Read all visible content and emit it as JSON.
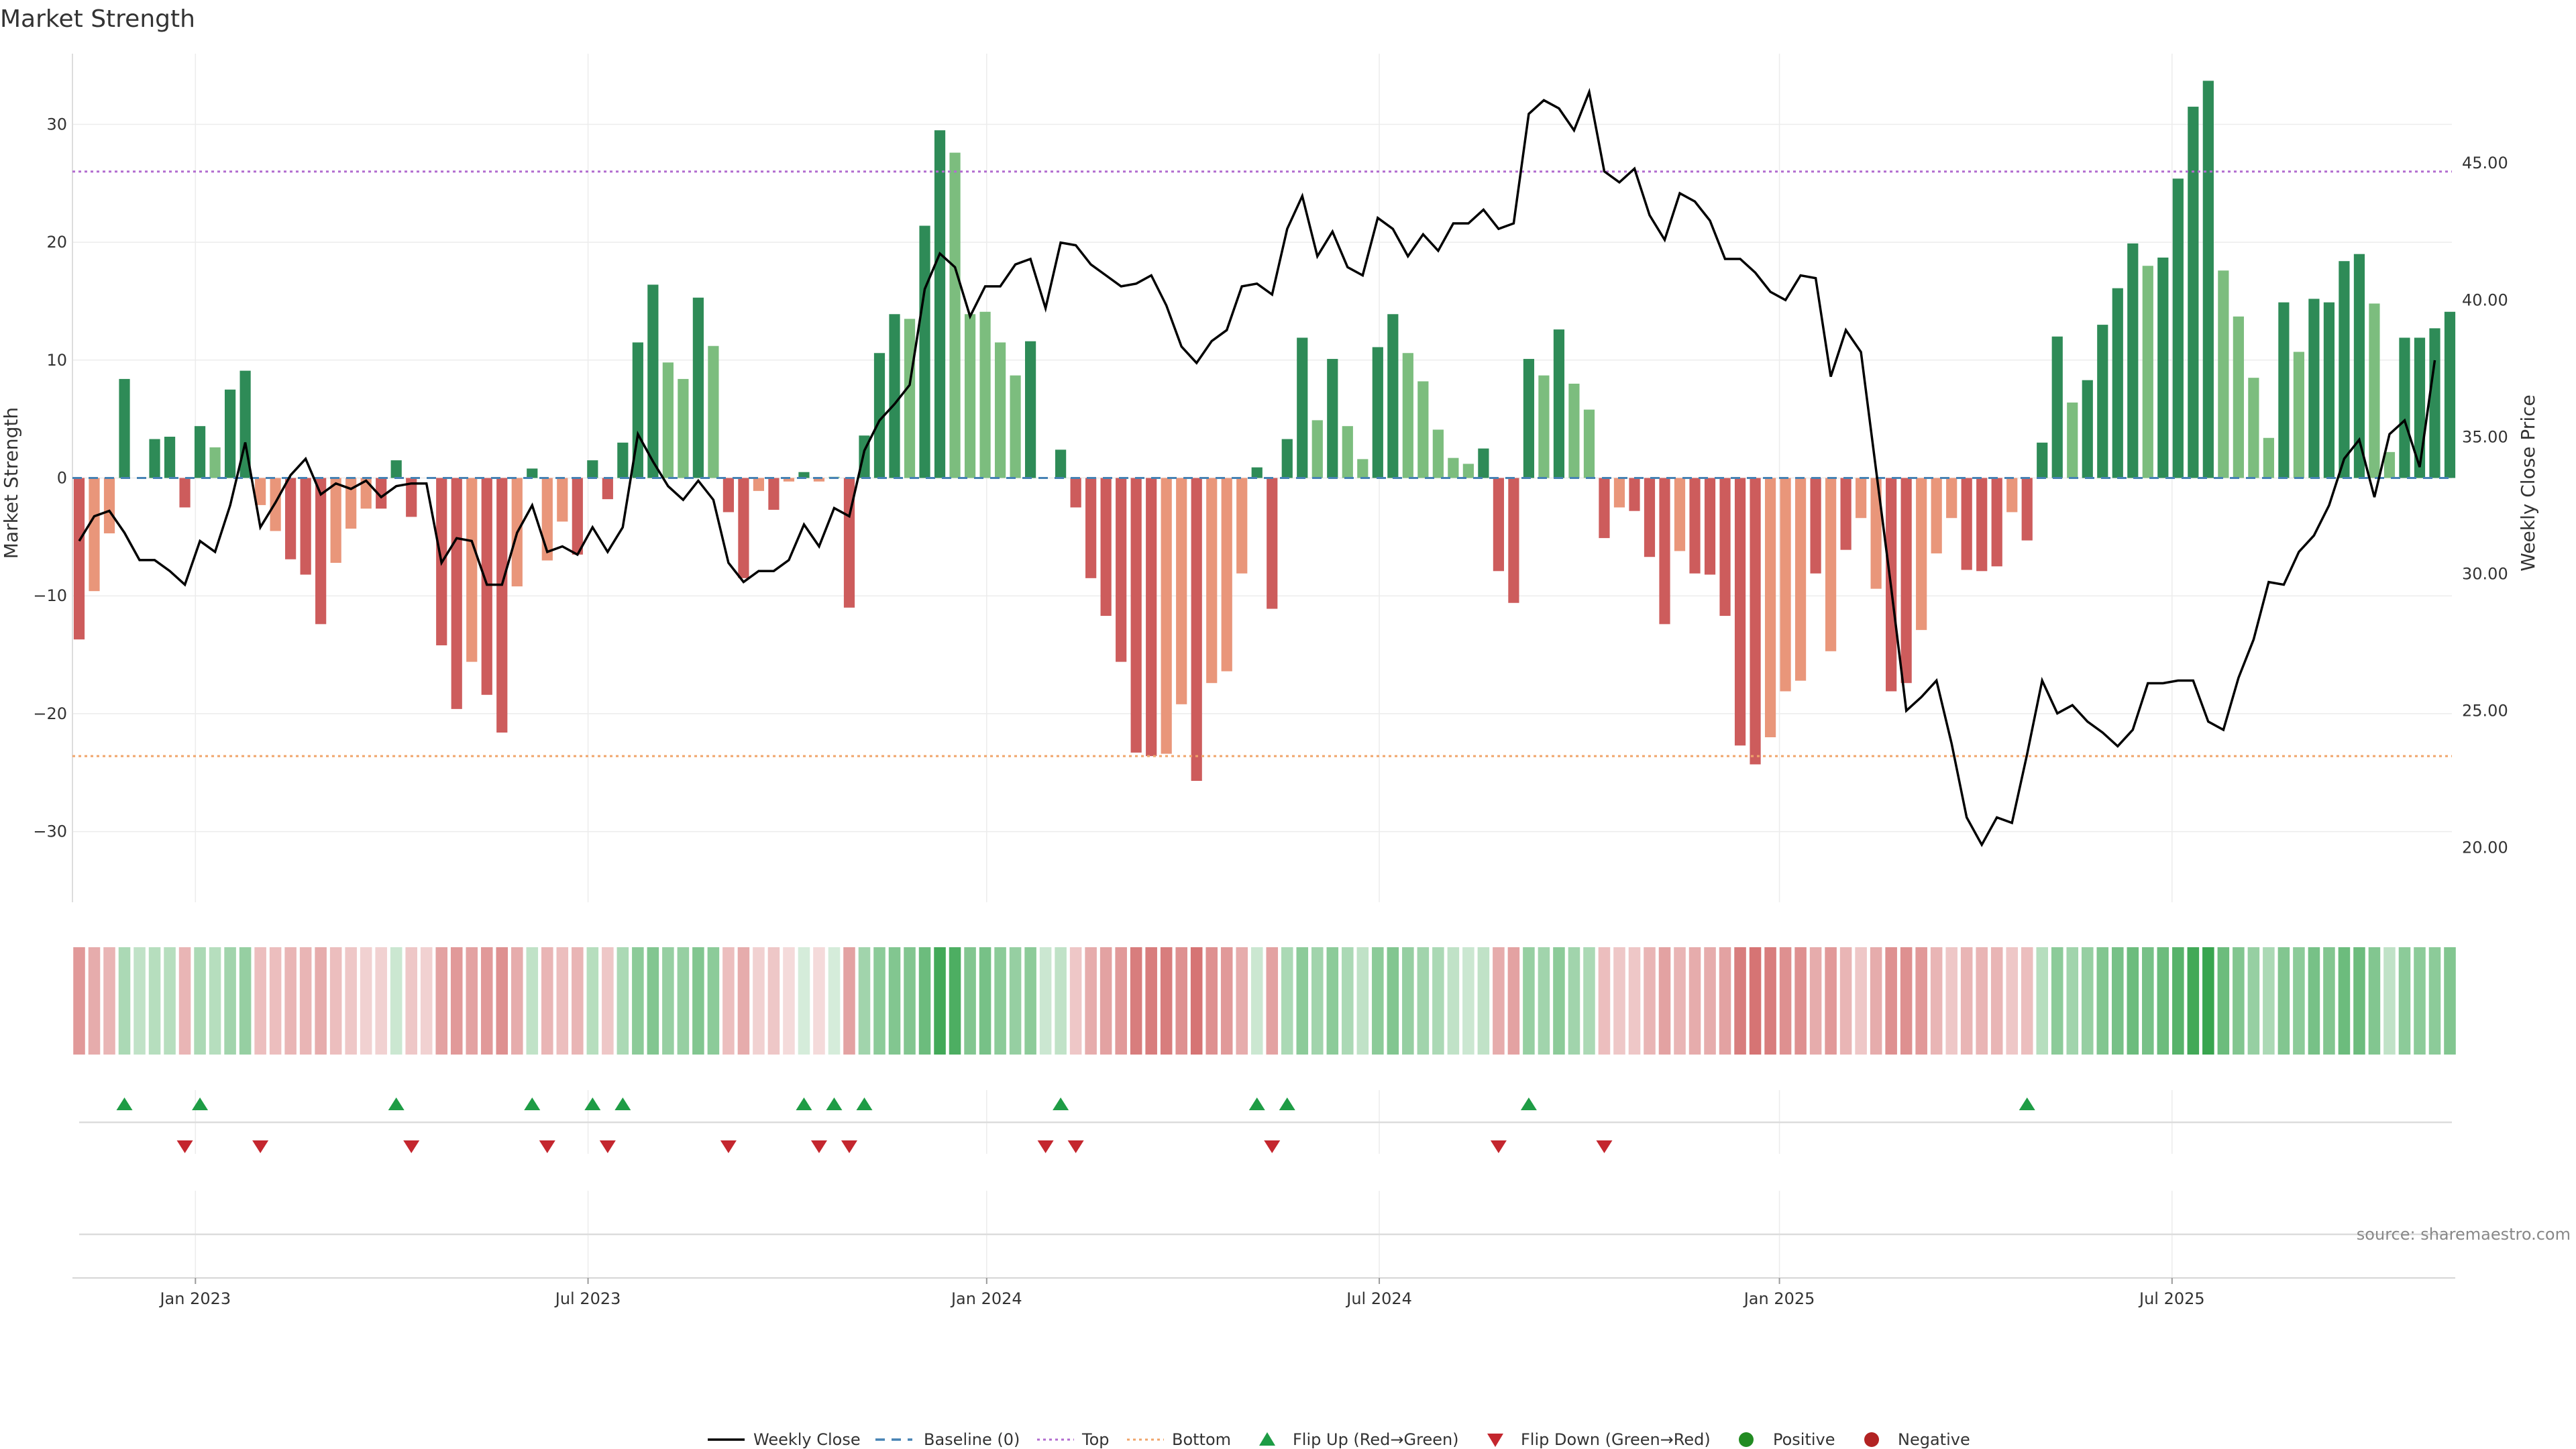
{
  "chart_data": {
    "type": "bar",
    "title": "Market Strength",
    "ylabel_left": "Market Strength",
    "ylabel_right": "Weekly Close Price",
    "ylim_left": [
      -36,
      36
    ],
    "ylim_right": [
      18,
      49
    ],
    "yticks_left": [
      30,
      20,
      10,
      0,
      -10,
      -20,
      -30
    ],
    "yticks_right": [
      "45.00",
      "40.00",
      "35.00",
      "30.00",
      "25.00",
      "20.00"
    ],
    "x_tick_labels": [
      "Jan 2023",
      "Jul 2023",
      "Jan 2024",
      "Jul 2024",
      "Jan 2025",
      "Jul 2025"
    ],
    "x_tick_weeks": [
      7.7,
      33.7,
      60.1,
      86.1,
      112.6,
      138.6
    ],
    "top_level": 26,
    "bottom_level": -23.6,
    "strength": [
      -13.7,
      -9.6,
      -4.7,
      8.4,
      0,
      3.3,
      3.5,
      -2.5,
      4.4,
      2.6,
      7.5,
      9.1,
      -2.3,
      -4.5,
      -6.9,
      -8.2,
      -12.4,
      -7.2,
      -4.3,
      -2.6,
      -2.6,
      1.5,
      -3.3,
      0,
      -14.2,
      -19.6,
      -15.6,
      -18.4,
      -21.6,
      -9.2,
      0.8,
      -7.0,
      -3.7,
      -6.5,
      1.5,
      -1.8,
      3.0,
      11.5,
      16.4,
      9.8,
      8.4,
      15.3,
      11.2,
      -2.9,
      -8.5,
      -1.1,
      -2.7,
      -0.3,
      0.5,
      -0.3,
      0.1,
      -11.0,
      3.6,
      10.6,
      13.9,
      13.5,
      21.4,
      29.5,
      27.6,
      13.9,
      14.1,
      11.5,
      8.7,
      11.6,
      0,
      2.4,
      -2.5,
      -8.5,
      -11.7,
      -15.6,
      -23.3,
      -23.6,
      -23.4,
      -19.2,
      -25.7,
      -17.4,
      -16.4,
      -8.1,
      0.9,
      -11.1,
      3.3,
      11.9,
      4.9,
      10.1,
      4.4,
      1.6,
      11.1,
      13.9,
      10.6,
      8.2,
      4.1,
      1.7,
      1.2,
      2.5,
      -7.9,
      -10.6,
      10.1,
      8.7,
      12.6,
      8.0,
      5.8,
      -5.1,
      -2.5,
      -2.8,
      -6.7,
      -12.4,
      -6.2,
      -8.1,
      -8.2,
      -11.7,
      -22.7,
      -24.3,
      -22.0,
      -18.1,
      -17.2,
      -8.1,
      -14.7,
      -6.1,
      -3.4,
      -9.4,
      -18.1,
      -17.4,
      -12.9,
      -6.4,
      -3.4,
      -7.8,
      -7.9,
      -7.5,
      -2.9,
      -5.3,
      3.0,
      12.0,
      6.4,
      8.3,
      13.0,
      16.1,
      19.9,
      18.0,
      18.7,
      25.4,
      31.5,
      33.7,
      17.6,
      13.7,
      8.5,
      3.4,
      14.9,
      10.7,
      15.2,
      14.9,
      18.4,
      19.0,
      14.8,
      2.2,
      11.9,
      11.9,
      12.7,
      14.1
    ],
    "bar_shades": [
      2,
      1,
      1,
      3,
      0,
      3,
      3,
      2,
      3,
      1,
      3,
      3,
      1,
      1,
      2,
      2,
      2,
      1,
      1,
      1,
      2,
      3,
      2,
      0,
      2,
      2,
      1,
      2,
      2,
      1,
      3,
      1,
      1,
      2,
      3,
      2,
      3,
      3,
      3,
      1,
      1,
      3,
      1,
      2,
      2,
      1,
      2,
      1,
      3,
      1,
      1,
      2,
      3,
      3,
      3,
      1,
      3,
      3,
      1,
      1,
      1,
      1,
      1,
      3,
      0,
      3,
      2,
      2,
      2,
      2,
      2,
      2,
      1,
      1,
      2,
      1,
      1,
      1,
      3,
      2,
      3,
      3,
      1,
      3,
      1,
      1,
      3,
      3,
      1,
      1,
      1,
      1,
      1,
      3,
      2,
      2,
      3,
      1,
      3,
      1,
      1,
      2,
      1,
      2,
      2,
      2,
      1,
      2,
      2,
      2,
      2,
      2,
      1,
      1,
      1,
      2,
      1,
      2,
      1,
      1,
      2,
      2,
      1,
      1,
      1,
      2,
      2,
      2,
      1,
      2,
      3,
      3,
      1,
      3,
      3,
      3,
      3,
      1,
      3,
      3,
      3,
      3,
      1,
      1,
      1,
      1,
      3,
      1,
      3,
      3,
      3,
      3,
      1,
      1,
      3,
      3,
      3,
      3
    ],
    "heat_strip": [
      -0.45,
      -0.35,
      -0.3,
      0.3,
      0.2,
      0.25,
      0.25,
      -0.3,
      0.3,
      0.25,
      0.35,
      0.4,
      -0.25,
      -0.25,
      -0.3,
      -0.3,
      -0.35,
      -0.25,
      -0.2,
      -0.15,
      -0.15,
      0.15,
      -0.2,
      -0.15,
      -0.4,
      -0.45,
      -0.4,
      -0.45,
      -0.5,
      -0.35,
      0.2,
      -0.3,
      -0.25,
      -0.3,
      0.25,
      -0.2,
      0.3,
      0.45,
      0.5,
      0.4,
      0.4,
      0.5,
      0.45,
      -0.25,
      -0.35,
      -0.15,
      -0.2,
      -0.1,
      0.1,
      -0.1,
      0.1,
      -0.4,
      0.35,
      0.45,
      0.5,
      0.5,
      0.6,
      0.8,
      0.75,
      0.5,
      0.55,
      0.45,
      0.4,
      0.45,
      0.15,
      0.2,
      -0.2,
      -0.35,
      -0.4,
      -0.45,
      -0.6,
      -0.6,
      -0.6,
      -0.5,
      -0.65,
      -0.5,
      -0.45,
      -0.35,
      0.15,
      -0.4,
      0.3,
      0.45,
      0.35,
      0.45,
      0.3,
      0.2,
      0.45,
      0.5,
      0.4,
      0.35,
      0.3,
      0.2,
      0.15,
      0.2,
      -0.35,
      -0.4,
      0.4,
      0.35,
      0.45,
      0.35,
      0.3,
      -0.25,
      -0.2,
      -0.2,
      -0.3,
      -0.4,
      -0.3,
      -0.35,
      -0.35,
      -0.4,
      -0.6,
      -0.65,
      -0.6,
      -0.5,
      -0.5,
      -0.35,
      -0.45,
      -0.3,
      -0.2,
      -0.35,
      -0.5,
      -0.5,
      -0.45,
      -0.3,
      -0.2,
      -0.3,
      -0.3,
      -0.3,
      -0.2,
      -0.25,
      0.25,
      0.45,
      0.35,
      0.4,
      0.5,
      0.55,
      0.6,
      0.55,
      0.6,
      0.7,
      0.8,
      0.85,
      0.6,
      0.5,
      0.4,
      0.3,
      0.5,
      0.45,
      0.55,
      0.5,
      0.6,
      0.6,
      0.5,
      0.2,
      0.45,
      0.45,
      0.45,
      0.5
    ],
    "close": [
      31.2,
      32.1,
      32.3,
      31.5,
      30.5,
      30.5,
      30.1,
      29.6,
      31.2,
      30.8,
      32.5,
      34.8,
      31.7,
      32.6,
      33.6,
      34.2,
      32.9,
      33.3,
      33.1,
      33.4,
      32.8,
      33.2,
      33.3,
      33.3,
      30.4,
      31.3,
      31.2,
      29.6,
      29.6,
      31.5,
      32.5,
      30.8,
      31.0,
      30.7,
      31.7,
      30.8,
      31.7,
      35.1,
      34.1,
      33.2,
      32.7,
      33.4,
      32.7,
      30.4,
      29.7,
      30.1,
      30.1,
      30.5,
      31.8,
      31.0,
      32.4,
      32.1,
      34.5,
      35.6,
      36.2,
      36.9,
      40.4,
      41.7,
      41.2,
      39.4,
      40.5,
      40.5,
      41.3,
      41.5,
      39.7,
      42.1,
      42.0,
      41.3,
      40.9,
      40.5,
      40.6,
      40.9,
      39.8,
      38.3,
      37.7,
      38.5,
      38.9,
      40.5,
      40.6,
      40.2,
      42.6,
      43.8,
      41.6,
      42.5,
      41.2,
      40.9,
      43.0,
      42.6,
      41.6,
      42.4,
      41.8,
      42.8,
      42.8,
      43.3,
      42.6,
      42.8,
      46.8,
      47.3,
      47.0,
      46.2,
      47.6,
      44.7,
      44.3,
      44.8,
      43.1,
      42.2,
      43.9,
      43.6,
      42.9,
      41.5,
      41.5,
      41.0,
      40.3,
      40.0,
      40.9,
      40.8,
      37.2,
      38.9,
      38.1,
      33.8,
      29.5,
      25.0,
      25.5,
      26.1,
      23.8,
      21.1,
      20.1,
      21.1,
      20.9,
      23.4,
      26.1,
      24.9,
      25.2,
      24.6,
      24.2,
      23.7,
      24.3,
      26.0,
      26.0,
      26.1,
      26.1,
      24.6,
      24.3,
      26.2,
      27.6,
      29.7,
      29.6,
      30.8,
      31.4,
      32.5,
      34.2,
      34.9,
      32.8,
      35.1,
      35.6,
      33.9,
      37.8
    ],
    "flip_up_weeks": [
      3,
      8,
      21,
      30,
      34,
      36,
      48,
      50,
      52,
      65,
      78,
      80,
      96,
      129
    ],
    "flip_down_weeks": [
      7,
      12,
      22,
      31,
      35,
      43,
      49,
      51,
      64,
      66,
      79,
      94,
      101
    ],
    "legend": {
      "weekly_close": "Weekly Close",
      "baseline": "Baseline (0)",
      "top": "Top",
      "bottom": "Bottom",
      "flip_up": "Flip Up (Red→Green)",
      "flip_down": "Flip Down (Green→Red)",
      "positive": "Positive",
      "negative": "Negative"
    },
    "legend_placement": "bottom-center",
    "source": "source: sharemaestro.com",
    "colors": {
      "pos_dark": "#2e8b57",
      "pos_light": "#7cbd7e",
      "neg_dark": "#cd5c5c",
      "neg_light": "#e9967a",
      "top_line": "#b26ccf",
      "bottom_line": "#f0a56b",
      "baseline": "#4682b4",
      "close_line": "#000000",
      "flip_up": "#1e9c45",
      "flip_down": "#c4262e",
      "positive_dot": "#228b22",
      "negative_dot": "#b22222"
    }
  }
}
